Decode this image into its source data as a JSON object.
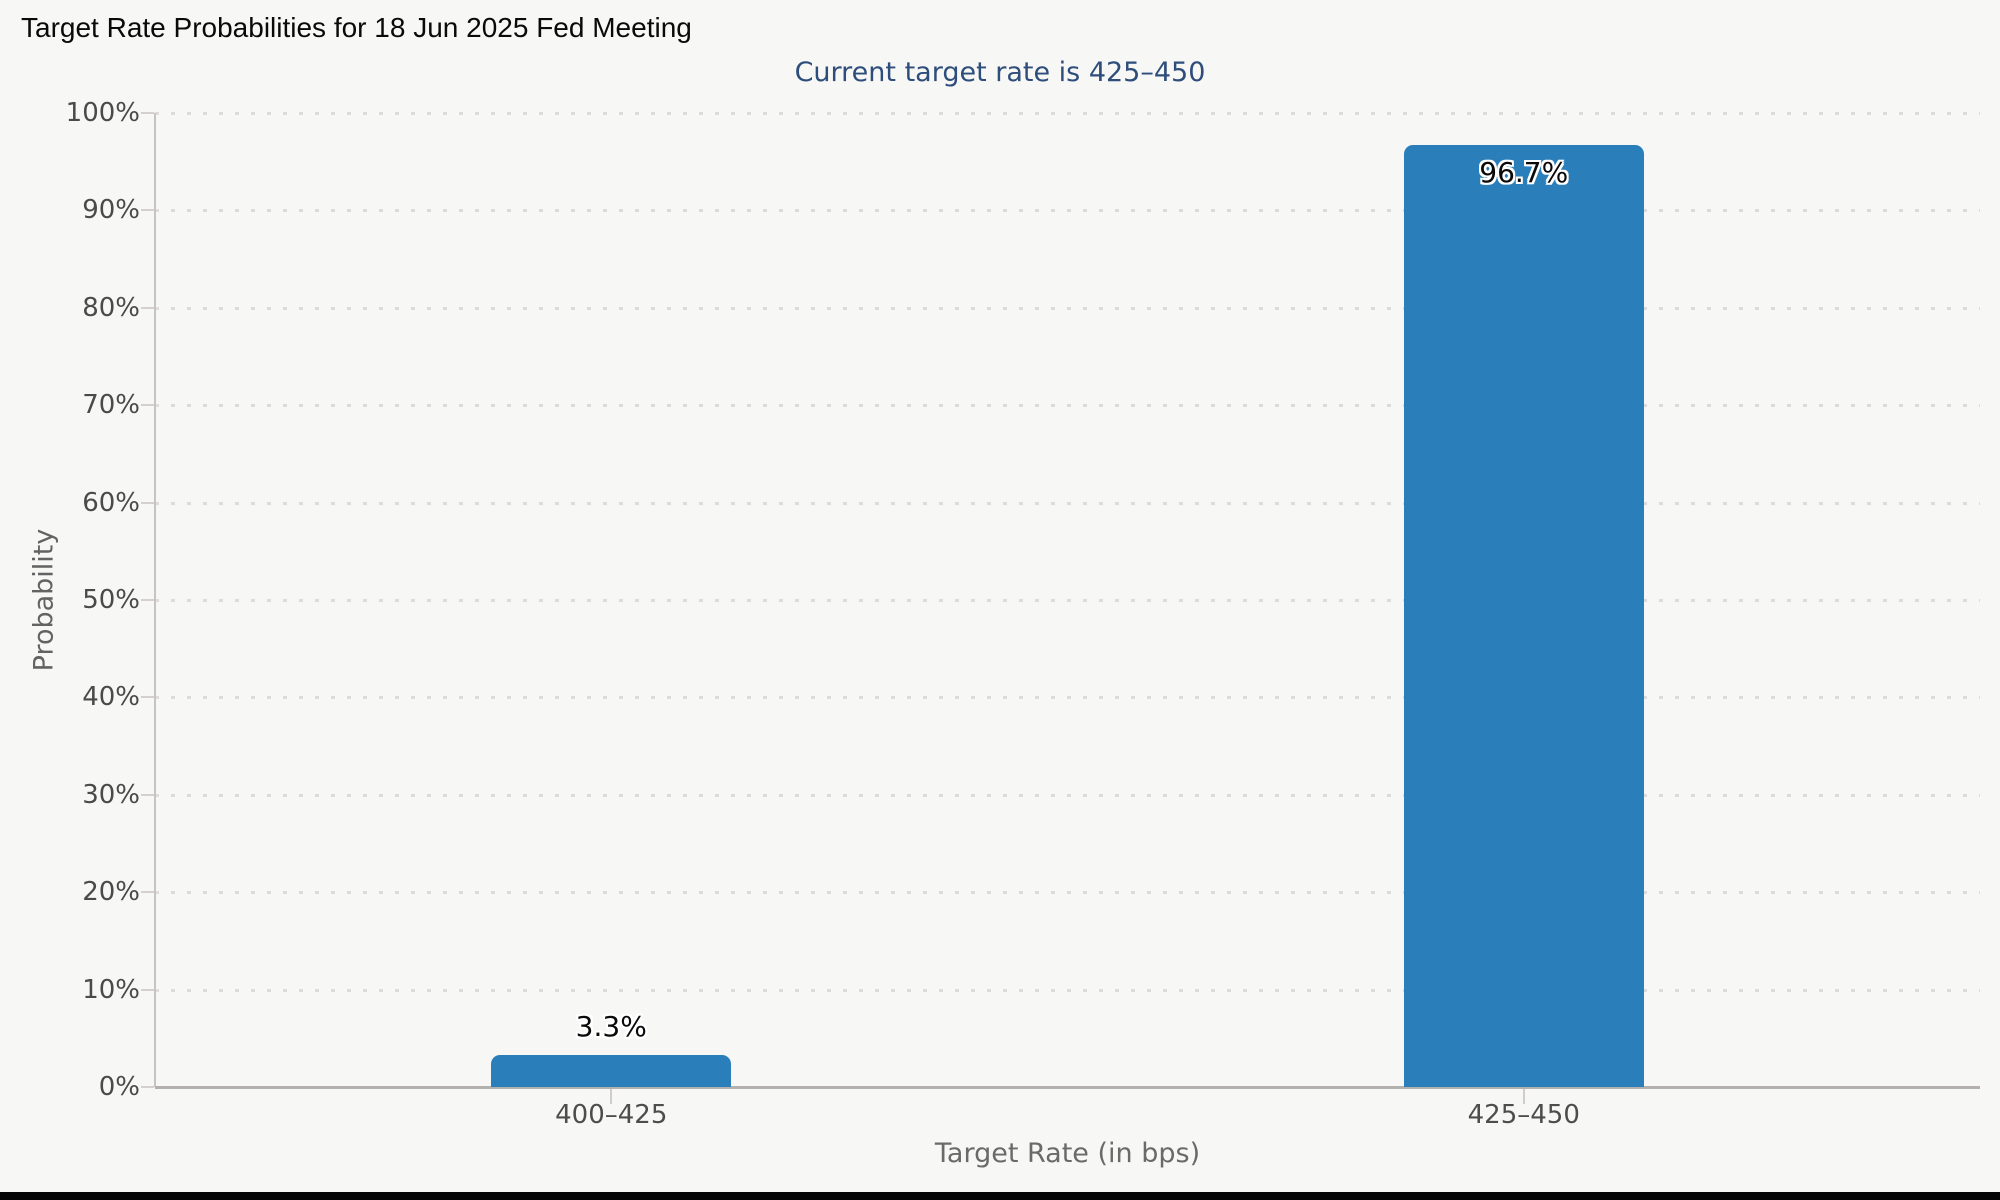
{
  "title": "Target Rate Probabilities for 18 Jun 2025 Fed Meeting",
  "subtitle": "Current target rate is 425–450",
  "colors": {
    "bar": "#2a7fba",
    "subtitle_text": "#2e4d7b",
    "background": "#f7f7f6",
    "axis_text": "#4a4a4a",
    "axis_line": "#b3b0ad",
    "grid_dots": "#dedbd9"
  },
  "chart_data": {
    "type": "bar",
    "title": "Target Rate Probabilities for 18 Jun 2025 Fed Meeting",
    "subtitle": "Current target rate is 425–450",
    "categories": [
      "400–425",
      "425–450"
    ],
    "values": [
      3.3,
      96.7
    ],
    "value_labels": [
      "3.3%",
      "96.7%"
    ],
    "xlabel": "Target Rate (in bps)",
    "ylabel": "Probability",
    "ylim": [
      0,
      100
    ],
    "ytick_step": 10,
    "ytick_labels": [
      "0%",
      "10%",
      "20%",
      "30%",
      "40%",
      "50%",
      "60%",
      "70%",
      "80%",
      "90%",
      "100%"
    ],
    "grid": "horizontal-dotted",
    "legend": "none"
  }
}
